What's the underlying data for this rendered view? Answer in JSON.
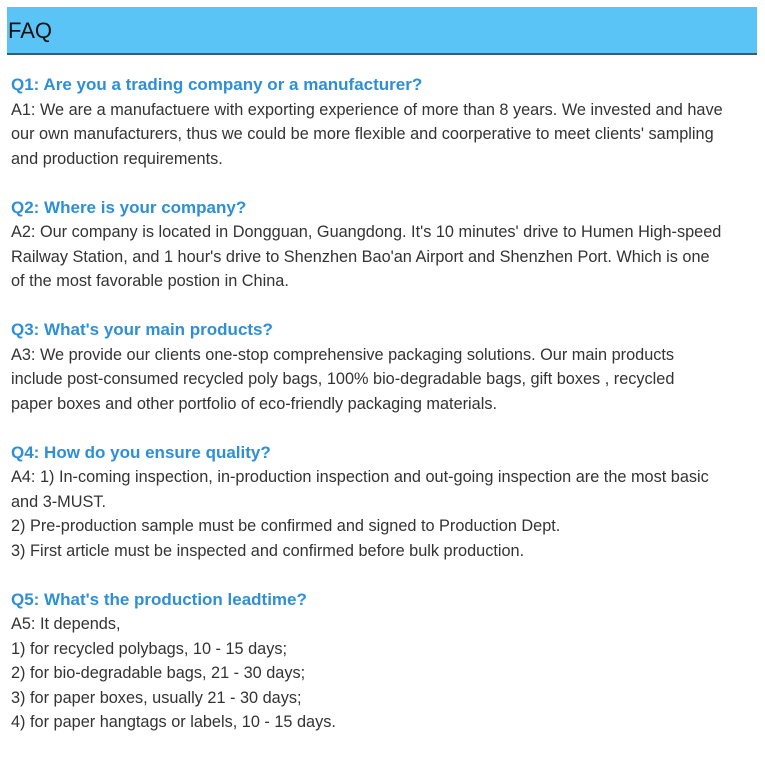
{
  "header": {
    "title": "FAQ",
    "background_color": "#5bc4f7",
    "question_color": "#2e8fd6"
  },
  "faq": [
    {
      "question": "Q1: Are you a trading company or a manufacturer?",
      "answer_lines": [
        "A1: We are a manufactuere with exporting experience of more than 8 years. We invested and have",
        "our own manufacturers, thus we could be more flexible and coorperative to meet clients' sampling",
        "and production requirements."
      ]
    },
    {
      "question": "Q2: Where is your company?",
      "answer_lines": [
        "A2: Our company is located in Dongguan, Guangdong. It's 10 minutes' drive to Humen High-speed",
        "Railway Station, and 1 hour's drive to Shenzhen Bao'an Airport and Shenzhen Port. Which is one",
        "of the most favorable postion in China."
      ]
    },
    {
      "question": "Q3: What's your main products?",
      "answer_lines": [
        "A3: We provide our clients one-stop comprehensive packaging solutions. Our main products",
        "include post-consumed recycled poly bags, 100% bio-degradable bags, gift boxes , recycled",
        "paper boxes and other portfolio of eco-friendly packaging materials."
      ]
    },
    {
      "question": "Q4: How do you ensure quality?",
      "answer_lines": [
        "A4: 1) In-coming inspection, in-production inspection and out-going inspection are the most basic",
        "and 3-MUST.",
        "2) Pre-production sample must be confirmed and signed to Production Dept.",
        "3) First article must be inspected and confirmed before bulk production."
      ]
    },
    {
      "question": "Q5: What's the production leadtime?",
      "answer_lines": [
        "A5: It depends,",
        "1) for recycled polybags, 10 - 15 days;",
        "2) for bio-degradable bags, 21 - 30 days;",
        "3) for paper boxes, usually 21 - 30 days;",
        "4) for paper hangtags or labels, 10 - 15 days."
      ]
    }
  ]
}
